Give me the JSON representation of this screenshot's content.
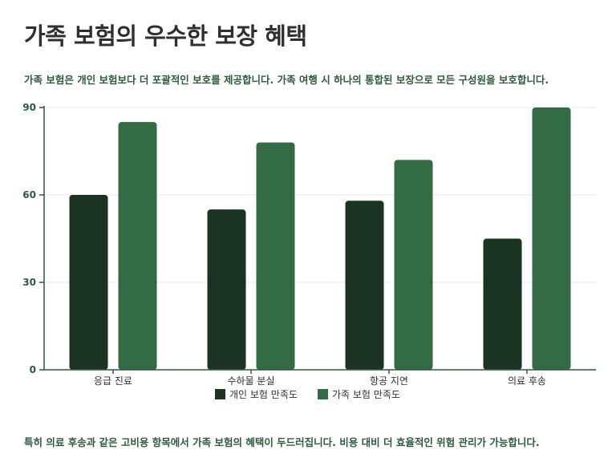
{
  "title": "가족 보험의 우수한 보장 혜택",
  "subtitle": "가족 보험은 개인 보험보다 더 포괄적인 보호를 제공합니다. 가족 여행 시 하나의 통합된 보장으로 모든 구성원을 보호합니다.",
  "footnote": "특히 의료 후송과 같은 고비용 항목에서 가족 보험의 혜택이 두드러집니다. 비용 대비 더 효율적인 위험 관리가 가능합니다.",
  "colors": {
    "axis": "#2d5a3d",
    "grid": "#e3e8e4",
    "series1": "#1b3322",
    "series2": "#336b45"
  },
  "chart_data": {
    "type": "bar",
    "categories": [
      "응급 진료",
      "수하물 분실",
      "항공 지연",
      "의료 후송"
    ],
    "series": [
      {
        "name": "개인 보험 만족도",
        "values": [
          60,
          55,
          58,
          45
        ]
      },
      {
        "name": "가족 보험 만족도",
        "values": [
          85,
          78,
          72,
          90
        ]
      }
    ],
    "ylim": [
      0,
      90
    ],
    "yticks": [
      0,
      30,
      60,
      90
    ],
    "grid": true,
    "legend": "bottom-center",
    "xlabel": "",
    "ylabel": ""
  }
}
